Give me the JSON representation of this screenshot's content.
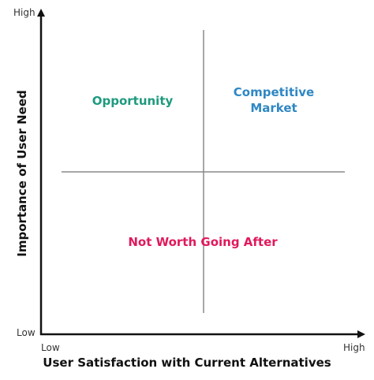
{
  "axes": {
    "y_title": "Importance of User Need",
    "x_title": "User Satisfaction with Current Alternatives",
    "y_high": "High",
    "y_low": "Low",
    "x_low": "Low",
    "x_high": "High"
  },
  "quadrants": {
    "opportunity": {
      "label": "Opportunity",
      "color": "#1e9a7e"
    },
    "competitive_line1": "Competitive",
    "competitive_line2": "Market",
    "competitive_color": "#2f87c4",
    "not_worth": {
      "label": "Not Worth Going After",
      "color": "#e0195a"
    }
  },
  "colors": {
    "axis": "#111111",
    "divider": "#8a8a8a"
  }
}
